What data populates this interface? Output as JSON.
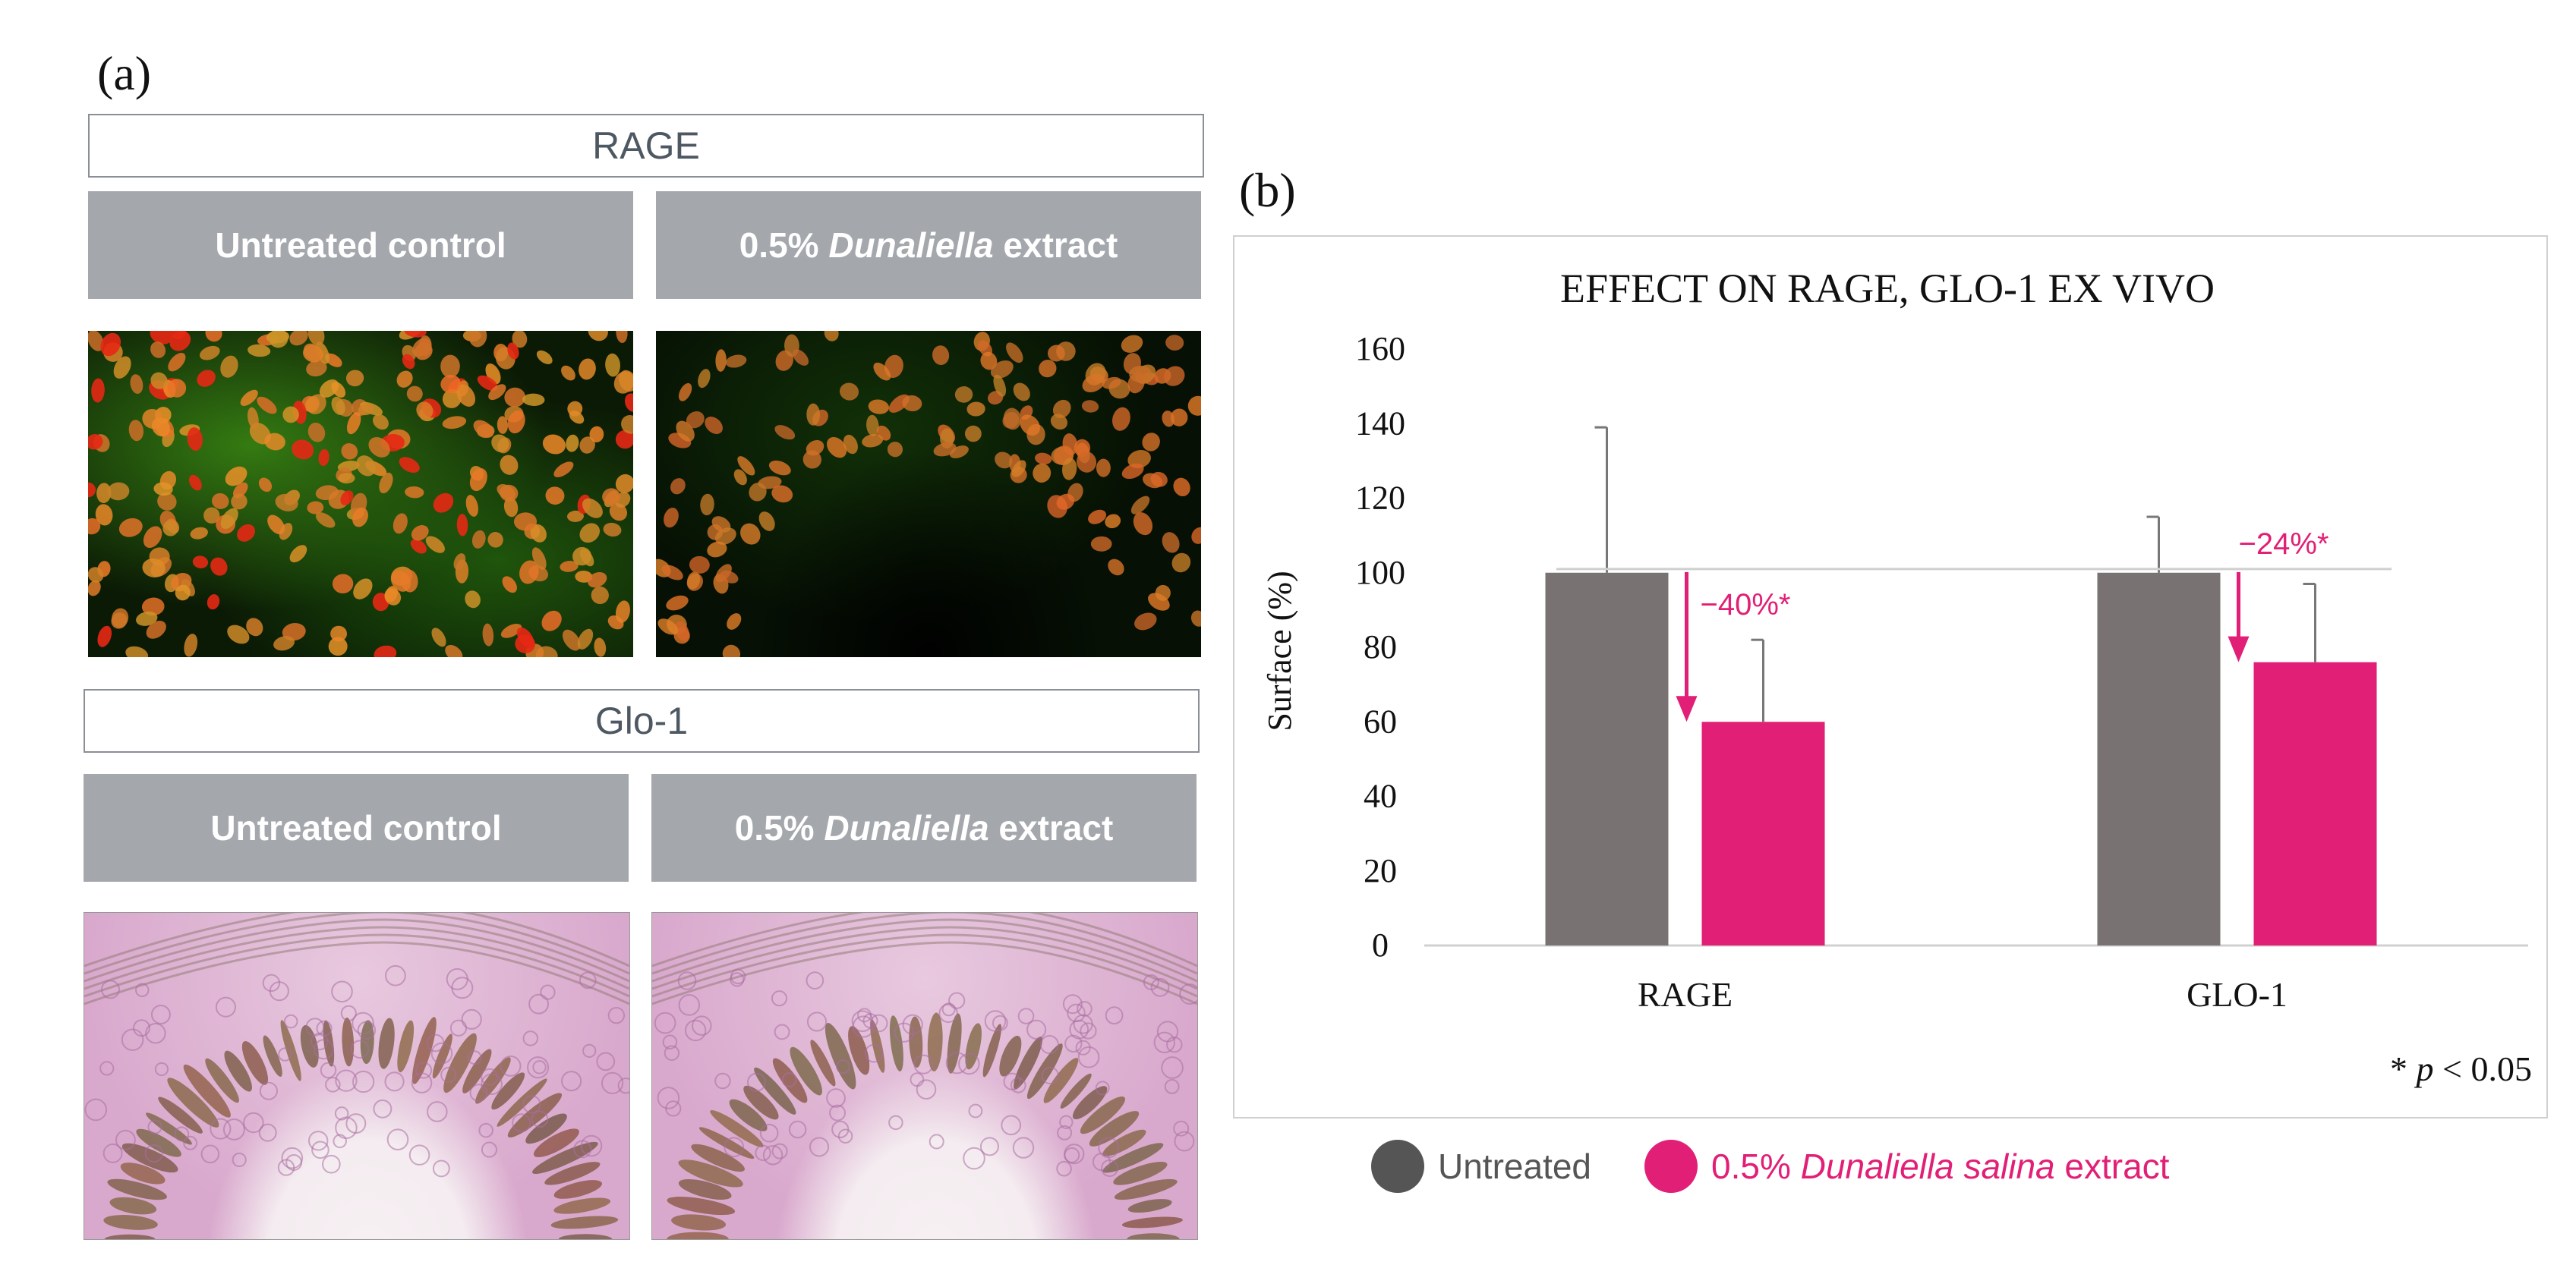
{
  "panel_a": {
    "label": "(a)",
    "rage_title": "RAGE",
    "glo1_title": "Glo-1",
    "untreated_label": "Untreated control",
    "extract_prefix": "0.5% ",
    "extract_italic": "Dunaliella",
    "extract_suffix": " extract"
  },
  "panel_b": {
    "label": "(b)"
  },
  "chart_data": {
    "type": "bar",
    "title": "EFFECT ON RAGE, GLO-1 EX VIVO",
    "ylabel": "Surface (%)",
    "xlabel": "",
    "categories": [
      "RAGE",
      "GLO-1"
    ],
    "ylim": [
      0,
      160
    ],
    "yticks": [
      0,
      20,
      40,
      60,
      80,
      100,
      120,
      140,
      160
    ],
    "grid": false,
    "series": [
      {
        "name": "Untreated",
        "values": [
          100,
          100
        ],
        "error": [
          39,
          15
        ],
        "color": "#787272"
      },
      {
        "name": "0.5% Dunaliella salina extract",
        "values": [
          60,
          76
        ],
        "error": [
          22,
          21
        ],
        "color": "#e21f76"
      }
    ],
    "reference_line": 101,
    "annotations": [
      "−40%*",
      "−24%*"
    ],
    "footnote_star": "* ",
    "footnote_p": "p",
    "footnote_rest": " < 0.05",
    "legend": {
      "placement": "bottom",
      "untreated": "Untreated",
      "extract_prefix": "0.5% ",
      "extract_italic": "Dunaliella salina",
      "extract_suffix": " extract"
    }
  }
}
